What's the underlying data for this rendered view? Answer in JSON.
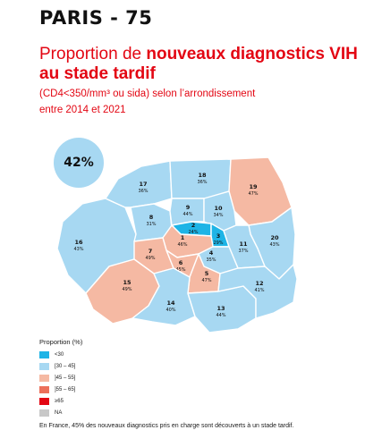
{
  "header": {
    "region": "PARIS - 75",
    "headline_lead": "Proportion de ",
    "headline_bold": "nouveaux diagnostics VIH au stade tardif",
    "subtitle_line1": "(CD4<350/mm³ ou sida) selon l’arrondissement",
    "subtitle_line2": "entre 2014 et 2021"
  },
  "overall": {
    "value": "42%",
    "color": "#a7d8f2"
  },
  "districts": [
    {
      "num": "1",
      "pct": "46%",
      "category": "45-55"
    },
    {
      "num": "2",
      "pct": "24%",
      "category": "lt30"
    },
    {
      "num": "3",
      "pct": "29%",
      "category": "lt30"
    },
    {
      "num": "4",
      "pct": "35%",
      "category": "30-45"
    },
    {
      "num": "5",
      "pct": "47%",
      "category": "45-55"
    },
    {
      "num": "6",
      "pct": "45%",
      "category": "45-55"
    },
    {
      "num": "7",
      "pct": "49%",
      "category": "45-55"
    },
    {
      "num": "8",
      "pct": "31%",
      "category": "30-45"
    },
    {
      "num": "9",
      "pct": "44%",
      "category": "30-45"
    },
    {
      "num": "10",
      "pct": "34%",
      "category": "30-45"
    },
    {
      "num": "11",
      "pct": "37%",
      "category": "30-45"
    },
    {
      "num": "12",
      "pct": "41%",
      "category": "30-45"
    },
    {
      "num": "13",
      "pct": "44%",
      "category": "30-45"
    },
    {
      "num": "14",
      "pct": "40%",
      "category": "30-45"
    },
    {
      "num": "15",
      "pct": "49%",
      "category": "45-55"
    },
    {
      "num": "16",
      "pct": "43%",
      "category": "30-45"
    },
    {
      "num": "17",
      "pct": "36%",
      "category": "30-45"
    },
    {
      "num": "18",
      "pct": "36%",
      "category": "30-45"
    },
    {
      "num": "19",
      "pct": "47%",
      "category": "45-55"
    },
    {
      "num": "20",
      "pct": "43%",
      "category": "30-45"
    }
  ],
  "legend": {
    "title": "Proportion (%)",
    "items": [
      {
        "key": "lt30",
        "label": "<30",
        "color": "#1eb4e6"
      },
      {
        "key": "30-45",
        "label": "[30 – 45]",
        "color": "#a7d8f2"
      },
      {
        "key": "45-55",
        "label": "]45 – 55]",
        "color": "#f5b9a3"
      },
      {
        "key": "55-65",
        "label": "]55 – 65]",
        "color": "#ec6f5a"
      },
      {
        "key": "ge65",
        "label": "≥65",
        "color": "#e30613"
      },
      {
        "key": "na",
        "label": "NA",
        "color": "#c8c8c8"
      }
    ]
  },
  "footnote": "En France, 45% des nouveaux diagnostics pris en charge sont découverts à un stade tardif."
}
